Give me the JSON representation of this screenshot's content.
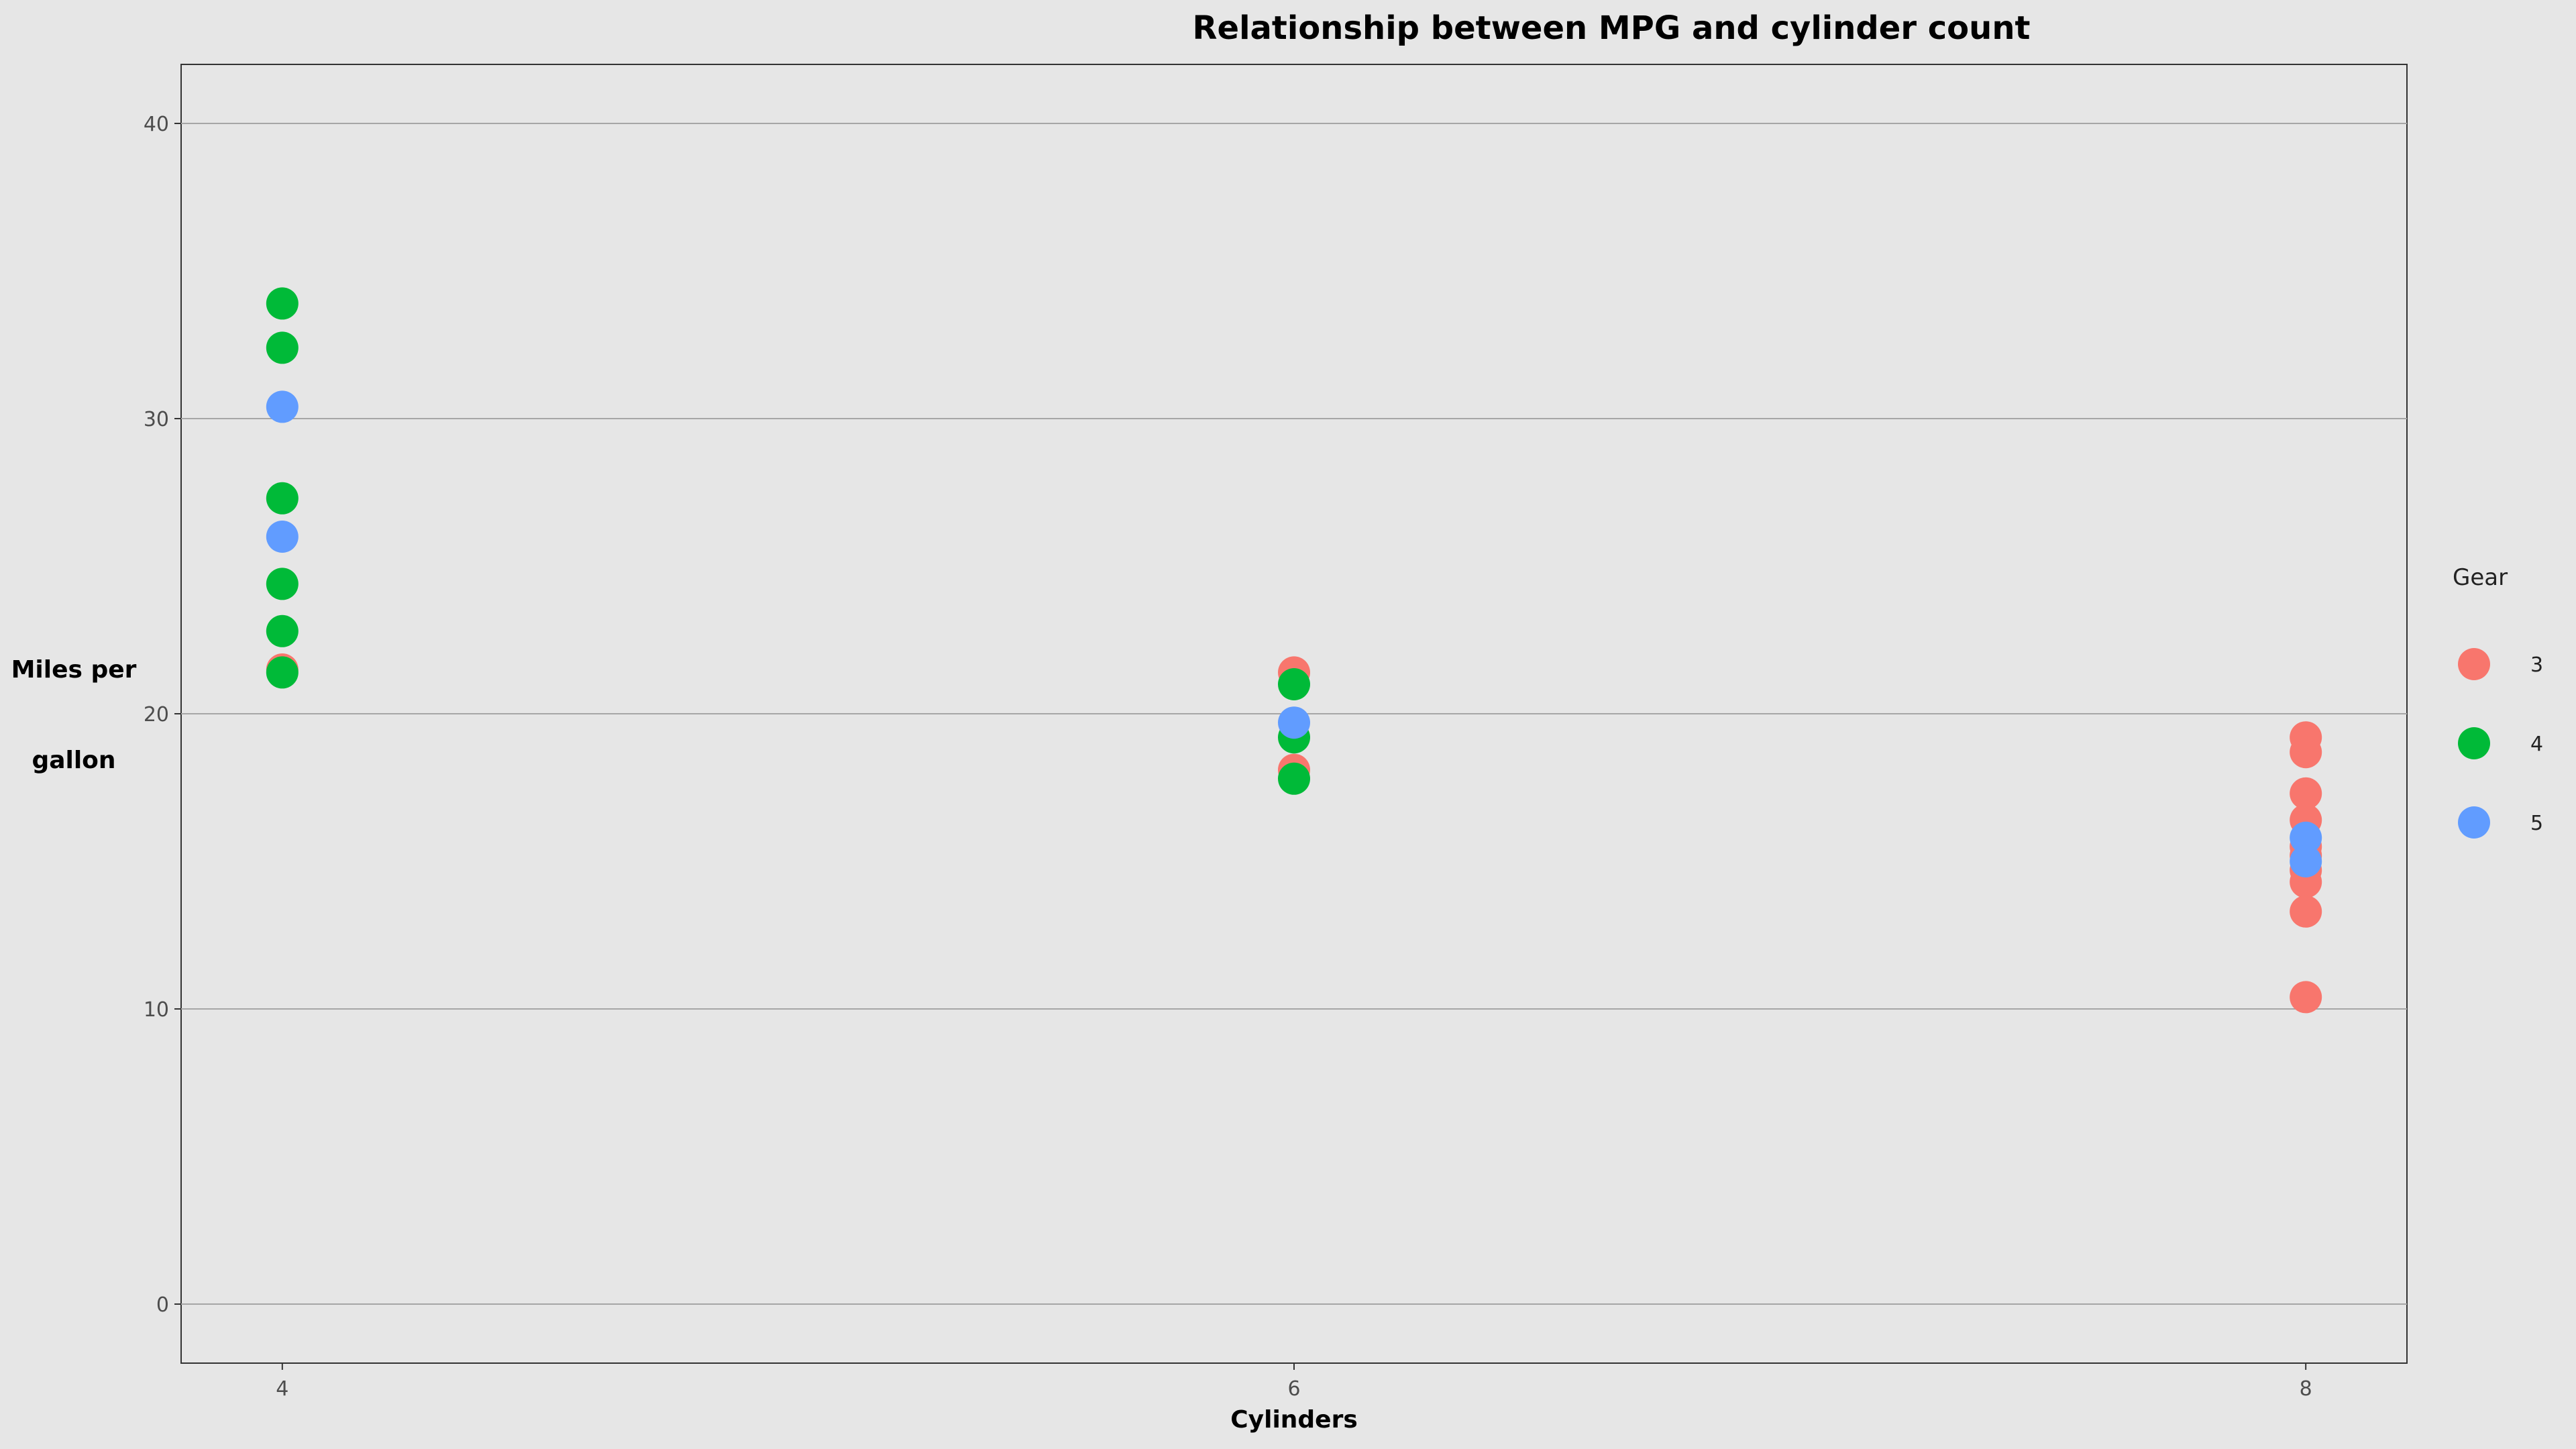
{
  "chart_data": {
    "type": "scatter",
    "title": "Relationship between MPG and cylinder count",
    "xlabel": "Cylinders",
    "ylabel_lines": [
      "Miles per",
      "gallon"
    ],
    "x_ticks": [
      4,
      6,
      8
    ],
    "y_ticks": [
      0,
      10,
      20,
      30,
      40
    ],
    "xlim": [
      3.8,
      8.2
    ],
    "ylim": [
      -2,
      42
    ],
    "grid": "horizontal",
    "legend": {
      "title": "Gear",
      "position": "right"
    },
    "series": [
      {
        "name": "3",
        "color": "#f8766d",
        "points": [
          [
            4,
            21.5
          ],
          [
            6,
            21.4
          ],
          [
            6,
            18.1
          ],
          [
            8,
            19.2
          ],
          [
            8,
            18.7
          ],
          [
            8,
            17.3
          ],
          [
            8,
            16.4
          ],
          [
            8,
            15.5
          ],
          [
            8,
            15.2
          ],
          [
            8,
            14.7
          ],
          [
            8,
            14.3
          ],
          [
            8,
            13.3
          ],
          [
            8,
            10.4
          ]
        ]
      },
      {
        "name": "4",
        "color": "#00ba38",
        "points": [
          [
            4,
            33.9
          ],
          [
            4,
            32.4
          ],
          [
            4,
            27.3
          ],
          [
            4,
            24.4
          ],
          [
            4,
            22.8
          ],
          [
            4,
            21.4
          ],
          [
            6,
            21.0
          ],
          [
            6,
            19.2
          ],
          [
            6,
            17.8
          ]
        ]
      },
      {
        "name": "5",
        "color": "#619cff",
        "points": [
          [
            4,
            30.4
          ],
          [
            4,
            26.0
          ],
          [
            6,
            19.7
          ],
          [
            8,
            15.8
          ],
          [
            8,
            15.0
          ]
        ]
      }
    ]
  }
}
